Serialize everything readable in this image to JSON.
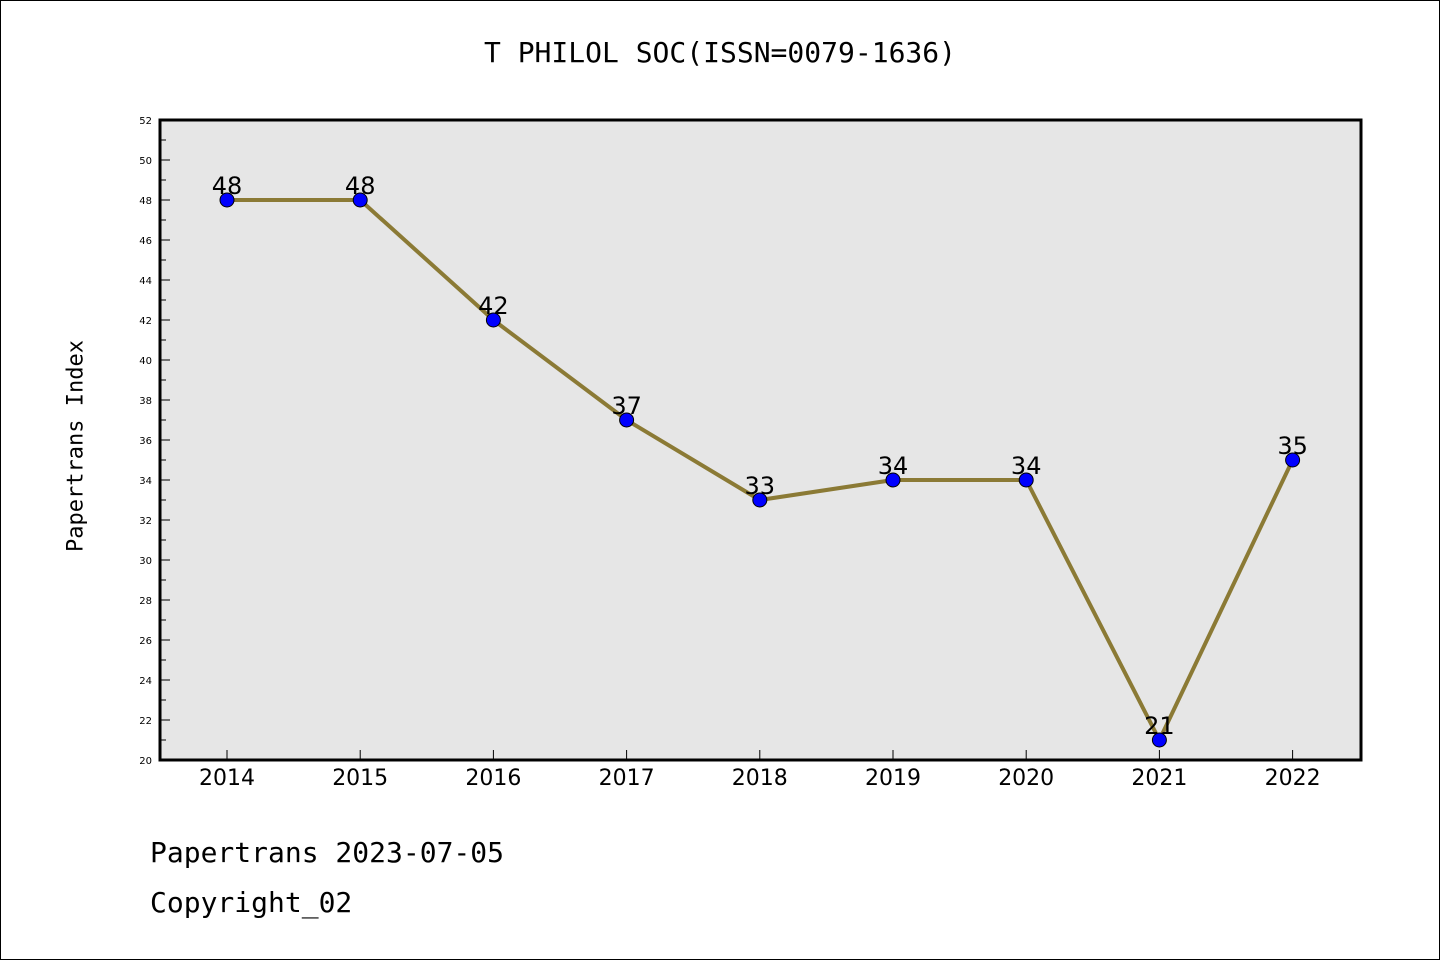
{
  "title": "T PHILOL SOC(ISSN=0079-1636)",
  "ylabel": "Papertrans Index",
  "footer": {
    "line1": "Papertrans 2023-07-05",
    "line2": "Copyright_02"
  },
  "colors": {
    "plot_background": "#e6e6e6",
    "line": "#8b7a35",
    "marker": "#0000ff"
  },
  "chart_data": {
    "type": "line",
    "title": "T PHILOL SOC(ISSN=0079-1636)",
    "xlabel": "",
    "ylabel": "Papertrans Index",
    "categories": [
      "2014",
      "2015",
      "2016",
      "2017",
      "2018",
      "2019",
      "2020",
      "2021",
      "2022"
    ],
    "series": [
      {
        "values": [
          48,
          48,
          42,
          37,
          33,
          34,
          34,
          21,
          35
        ]
      }
    ],
    "ylim": [
      20,
      52
    ],
    "yticks": [
      20,
      22,
      24,
      26,
      28,
      30,
      32,
      34,
      36,
      38,
      40,
      42,
      44,
      46,
      48,
      50,
      52
    ],
    "grid": false,
    "legend": "none"
  }
}
